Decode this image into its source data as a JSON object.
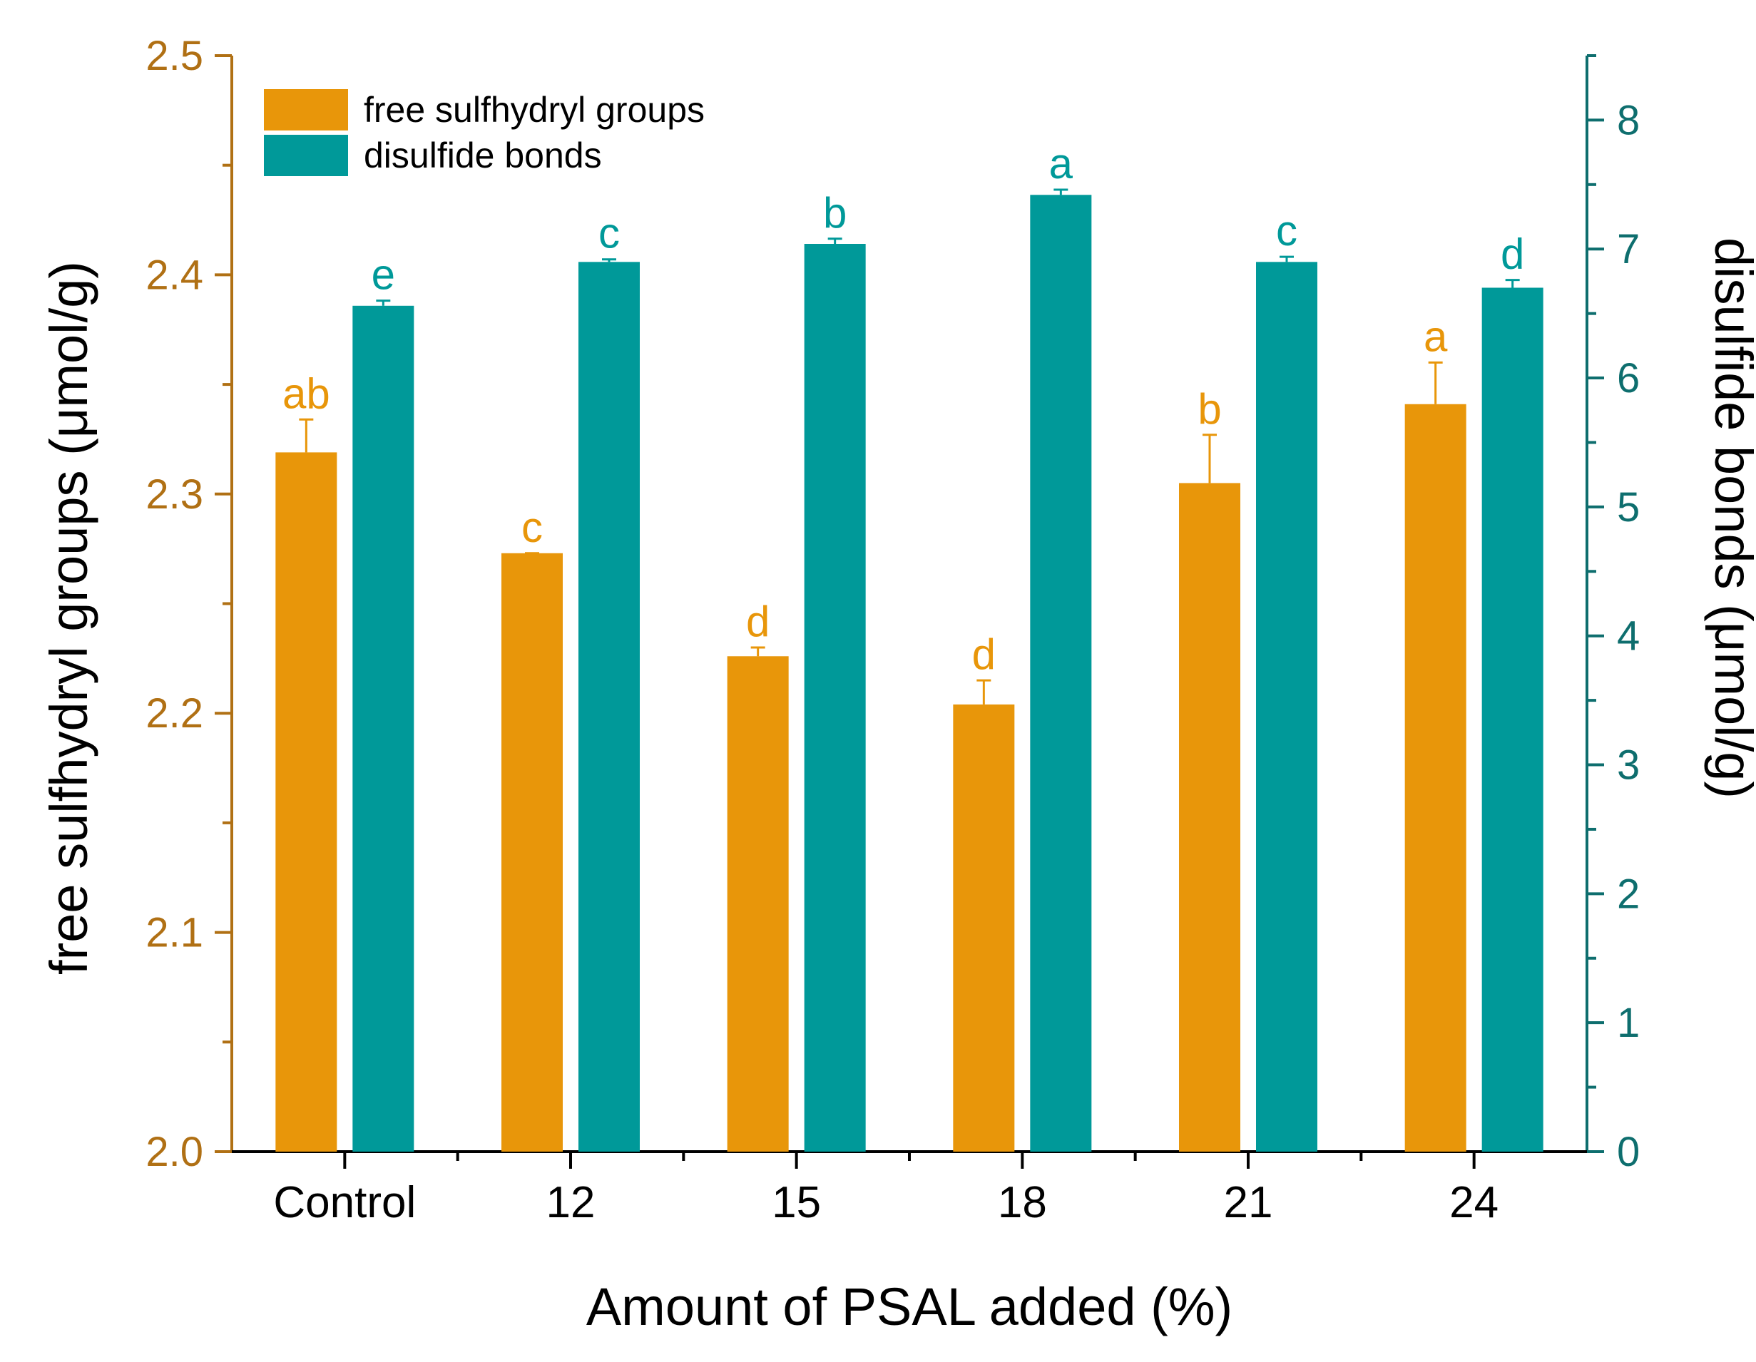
{
  "chart_data": {
    "type": "bar",
    "categories": [
      "Control",
      "12",
      "15",
      "18",
      "21",
      "24"
    ],
    "xlabel": "Amount of PSAL added (%)",
    "ylabel_left": "free sulfhydryl groups (μmol/g)",
    "ylabel_right": "disulfide bonds (μmol/g)",
    "ylim_left": [
      2.0,
      2.5
    ],
    "ylim_right": [
      0,
      8.5
    ],
    "yticks_left": [
      "2.0",
      "2.1",
      "2.2",
      "2.3",
      "2.4",
      "2.5"
    ],
    "yticks_right": [
      "0",
      "1",
      "2",
      "3",
      "4",
      "5",
      "6",
      "7",
      "8"
    ],
    "grid": false,
    "legend_position": "top-left",
    "series": [
      {
        "name": "free sulfhydryl groups",
        "axis": "left",
        "color": "#E8960A",
        "values": [
          2.319,
          2.273,
          2.226,
          2.204,
          2.305,
          2.341
        ],
        "errors": [
          0.015,
          0.0,
          0.004,
          0.011,
          0.022,
          0.019
        ],
        "significance": [
          "ab",
          "c",
          "d",
          "d",
          "b",
          "a"
        ]
      },
      {
        "name": "disulfide bonds",
        "axis": "right",
        "color": "#009999",
        "values": [
          6.56,
          6.9,
          7.04,
          7.42,
          6.9,
          6.7
        ],
        "errors": [
          0.04,
          0.02,
          0.04,
          0.04,
          0.04,
          0.06
        ],
        "significance": [
          "e",
          "c",
          "b",
          "a",
          "c",
          "d"
        ]
      }
    ]
  },
  "colors": {
    "left_axis": "#B07014",
    "right_axis": "#0E6E6E",
    "bottom_axis": "#000000"
  }
}
